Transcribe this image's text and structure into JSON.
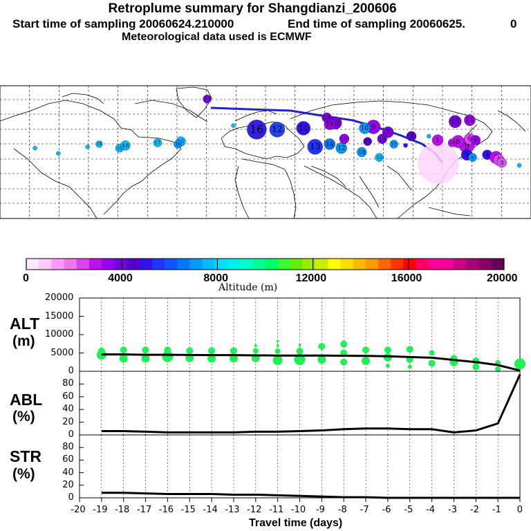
{
  "header": {
    "title": "Retroplume summary for Shangdianzi_200606",
    "line_start": "Start time of sampling 20060624.210000",
    "line_end": "End time of sampling 20060625.",
    "line_end_value": "0",
    "line_met": "Meteorological data used is ECMWF"
  },
  "colorbar": {
    "label": "Altitude (m)",
    "ticks": [
      "0",
      "4000",
      "8000",
      "12000",
      "16000",
      "20000"
    ],
    "tick_values": [
      0,
      4000,
      8000,
      12000,
      16000,
      20000
    ],
    "colors": [
      "#ffe6ff",
      "#ffccff",
      "#ff99ff",
      "#ee77ee",
      "#dd44ee",
      "#bb11ee",
      "#9900ee",
      "#7700dd",
      "#5500cc",
      "#3311ee",
      "#2233ff",
      "#1155ff",
      "#0077ff",
      "#0099ff",
      "#00bbff",
      "#00ddff",
      "#00eeee",
      "#00ffcc",
      "#00ff99",
      "#00ff66",
      "#33ff33",
      "#66ee00",
      "#99ee00",
      "#ccee00",
      "#ffff00",
      "#ffdd00",
      "#ffbb00",
      "#ff9900",
      "#ff6600",
      "#ff3300",
      "#ff0000",
      "#ff0066",
      "#ff0099",
      "#ee0099",
      "#cc0088",
      "#aa0077",
      "#880066",
      "#660055"
    ]
  },
  "map": {
    "markers": [
      {
        "label": "16",
        "lon": 88,
        "lat": 57,
        "r": 14,
        "color": "#3322dd"
      },
      {
        "label": "12",
        "lon": 95,
        "lat": 57,
        "r": 11,
        "color": "#2244ee"
      },
      {
        "label": "11",
        "lon": 104,
        "lat": 58,
        "r": 10,
        "color": "#3311ee"
      },
      {
        "label": "13",
        "lon": 115,
        "lat": 62,
        "r": 9,
        "color": "#7700dd"
      },
      {
        "label": "14",
        "lon": 113,
        "lat": 61,
        "r": 8,
        "color": "#9900ee"
      },
      {
        "label": "9",
        "lon": 128,
        "lat": 59,
        "r": 10,
        "color": "#9900ee"
      },
      {
        "label": "10",
        "lon": 125,
        "lat": 58,
        "r": 8,
        "color": "#0099ff"
      },
      {
        "label": "7",
        "lon": 133,
        "lat": 55,
        "r": 8,
        "color": "#7700dd"
      },
      {
        "label": "3",
        "lon": 141,
        "lat": 52,
        "r": 7,
        "color": "#5500cc"
      },
      {
        "label": "1",
        "lon": 150,
        "lat": 49,
        "r": 8,
        "color": "#bb11ee"
      },
      {
        "label": "9",
        "lon": 160,
        "lat": 45,
        "r": 11,
        "color": "#bb11ee"
      },
      {
        "label": "8",
        "lon": 157,
        "lat": 48,
        "r": 9,
        "color": "#bb11ee"
      },
      {
        "label": "6",
        "lon": 161,
        "lat": 50,
        "r": 8,
        "color": "#dd44ee"
      },
      {
        "label": "9",
        "lon": 163,
        "lat": 49,
        "r": 7,
        "color": "#9900ee"
      },
      {
        "label": "5",
        "lon": 160,
        "lat": 38,
        "r": 8,
        "color": "#3311ee"
      },
      {
        "label": "6",
        "lon": 162,
        "lat": 36,
        "r": 6,
        "color": "#0099ff"
      },
      {
        "label": "4",
        "lon": 167,
        "lat": 38,
        "r": 7,
        "color": "#3311ee"
      },
      {
        "label": "2",
        "lon": 170,
        "lat": 36,
        "r": 9,
        "color": "#bb11ee"
      },
      {
        "label": "5",
        "lon": 171,
        "lat": 34,
        "r": 8,
        "color": "#dd44ee"
      },
      {
        "label": "3",
        "lon": 172,
        "lat": 32,
        "r": 7,
        "color": "#cc55ee"
      },
      {
        "label": "13",
        "lon": 108,
        "lat": 44,
        "r": 11,
        "color": "#2233ff"
      },
      {
        "label": "14",
        "lon": 113,
        "lat": 46,
        "r": 8,
        "color": "#0077ff"
      },
      {
        "label": "12",
        "lon": 117,
        "lat": 43,
        "r": 8,
        "color": "#0099ff"
      },
      {
        "label": "18",
        "lon": 124,
        "lat": 40,
        "r": 7,
        "color": "#0099ff"
      },
      {
        "label": "15",
        "lon": 130,
        "lat": 36,
        "r": 6,
        "color": "#00bbff"
      },
      {
        "label": "11",
        "lon": 135,
        "lat": 46,
        "r": 6,
        "color": "#0099ff"
      },
      {
        "label": "10",
        "lon": 118,
        "lat": 50,
        "r": 7,
        "color": "#9900ee"
      },
      {
        "label": "19",
        "lon": 131,
        "lat": 50,
        "r": 7,
        "color": "#7700dd"
      },
      {
        "label": "17",
        "lon": 126,
        "lat": 48,
        "r": 6,
        "color": "#5500cc"
      },
      {
        "label": "18",
        "lon": 155,
        "lat": 47,
        "r": 6,
        "color": "#bb11ee"
      },
      {
        "label": "15",
        "lon": 156,
        "lat": 63,
        "r": 9,
        "color": "#7700dd"
      },
      {
        "label": "14",
        "lon": 161,
        "lat": 64,
        "r": 8,
        "color": "#9900ee"
      },
      {
        "label": "13",
        "lon": 112,
        "lat": 66,
        "r": 7,
        "color": "#7700dd"
      },
      {
        "label": "15",
        "lon": 62,
        "lat": 48,
        "r": 7,
        "color": "#00bbff"
      },
      {
        "label": "16",
        "lon": 61,
        "lat": 46,
        "r": 6,
        "color": "#0099ff"
      },
      {
        "label": "17",
        "lon": 54,
        "lat": 47,
        "r": 6,
        "color": "#00bbff"
      },
      {
        "label": "18",
        "lon": 43,
        "lat": 45,
        "r": 7,
        "color": "#00bbff"
      },
      {
        "label": "19",
        "lon": 41,
        "lat": 43,
        "r": 6,
        "color": "#00bbff"
      },
      {
        "label": "16",
        "lon": 34,
        "lat": 46,
        "r": 5,
        "color": "#00bbff"
      },
      {
        "label": "15",
        "lon": 71,
        "lat": 80,
        "r": 6,
        "color": "#7700dd"
      },
      {
        "label": "",
        "lon": 80,
        "lat": 60,
        "r": 3,
        "color": "#00bbff"
      },
      {
        "label": "",
        "lon": 30,
        "lat": 44,
        "r": 3,
        "color": "#00bbff"
      },
      {
        "label": "",
        "lon": 20,
        "lat": 39,
        "r": 3,
        "color": "#00bbff"
      },
      {
        "label": "",
        "lon": 12,
        "lat": 43,
        "r": 3,
        "color": "#00bbff"
      },
      {
        "label": "",
        "lon": 178,
        "lat": 30,
        "r": 3,
        "color": "#00bbff"
      },
      {
        "label": "",
        "lon": 147,
        "lat": 52,
        "r": 3,
        "color": "#00bbff"
      },
      {
        "label": "",
        "lon": 139,
        "lat": 45,
        "r": 3,
        "color": "#3311ee"
      }
    ]
  },
  "chart_data": [
    {
      "type": "scatter",
      "name": "ALT",
      "ylabel": "ALT (m)",
      "ylim": [
        0,
        20000
      ],
      "yticks": [
        0,
        5000,
        10000,
        15000,
        20000
      ],
      "median_line": {
        "x": [
          -19,
          -18,
          -17,
          -16,
          -15,
          -14,
          -13,
          -12,
          -11,
          -10,
          -9,
          -8,
          -7,
          -6,
          -5,
          -4,
          -3,
          -2,
          -1,
          0
        ],
        "y": [
          4600,
          4600,
          4500,
          4500,
          4450,
          4400,
          4400,
          4350,
          4300,
          4300,
          4300,
          4250,
          4200,
          4100,
          3900,
          3700,
          3100,
          2500,
          1700,
          200
        ]
      },
      "points": [
        {
          "x": -19,
          "y": 4500,
          "s": 7
        },
        {
          "x": -19,
          "y": 5500,
          "s": 5
        },
        {
          "x": -18,
          "y": 3500,
          "s": 6
        },
        {
          "x": -18,
          "y": 5800,
          "s": 5
        },
        {
          "x": -17,
          "y": 3500,
          "s": 6
        },
        {
          "x": -17,
          "y": 5800,
          "s": 5
        },
        {
          "x": -16,
          "y": 4000,
          "s": 8
        },
        {
          "x": -16,
          "y": 5800,
          "s": 5
        },
        {
          "x": -15,
          "y": 3600,
          "s": 6
        },
        {
          "x": -15,
          "y": 5600,
          "s": 5
        },
        {
          "x": -14,
          "y": 3500,
          "s": 6
        },
        {
          "x": -14,
          "y": 5600,
          "s": 5
        },
        {
          "x": -13,
          "y": 3500,
          "s": 6
        },
        {
          "x": -13,
          "y": 5600,
          "s": 5
        },
        {
          "x": -12,
          "y": 3600,
          "s": 6
        },
        {
          "x": -12,
          "y": 5600,
          "s": 4
        },
        {
          "x": -12,
          "y": 7000,
          "s": 2
        },
        {
          "x": -11,
          "y": 3000,
          "s": 7
        },
        {
          "x": -11,
          "y": 5500,
          "s": 4
        },
        {
          "x": -11,
          "y": 7000,
          "s": 2
        },
        {
          "x": -11,
          "y": 8200,
          "s": 2
        },
        {
          "x": -10,
          "y": 3200,
          "s": 8
        },
        {
          "x": -10,
          "y": 5500,
          "s": 5
        },
        {
          "x": -10,
          "y": 7200,
          "s": 2
        },
        {
          "x": -9,
          "y": 3200,
          "s": 6
        },
        {
          "x": -9,
          "y": 6800,
          "s": 5
        },
        {
          "x": -8,
          "y": 2500,
          "s": 5
        },
        {
          "x": -8,
          "y": 5000,
          "s": 5
        },
        {
          "x": -8,
          "y": 7400,
          "s": 5
        },
        {
          "x": -7,
          "y": 2800,
          "s": 6
        },
        {
          "x": -7,
          "y": 5800,
          "s": 5
        },
        {
          "x": -6,
          "y": 1500,
          "s": 3
        },
        {
          "x": -6,
          "y": 3800,
          "s": 6
        },
        {
          "x": -6,
          "y": 5800,
          "s": 5
        },
        {
          "x": -5,
          "y": 1200,
          "s": 3
        },
        {
          "x": -5,
          "y": 3200,
          "s": 5
        },
        {
          "x": -5,
          "y": 6000,
          "s": 5
        },
        {
          "x": -4,
          "y": 2200,
          "s": 5
        },
        {
          "x": -4,
          "y": 5000,
          "s": 4
        },
        {
          "x": -3,
          "y": 2500,
          "s": 6
        },
        {
          "x": -3,
          "y": 3500,
          "s": 5
        },
        {
          "x": -2,
          "y": 1200,
          "s": 5
        },
        {
          "x": -2,
          "y": 2800,
          "s": 5
        },
        {
          "x": -1,
          "y": 600,
          "s": 4
        },
        {
          "x": -1,
          "y": 2300,
          "s": 4
        },
        {
          "x": 0,
          "y": 2000,
          "s": 8
        }
      ]
    },
    {
      "type": "line",
      "name": "ABL",
      "ylabel": "ABL (%)",
      "ylim": [
        0,
        100
      ],
      "yticks": [
        0,
        20,
        40,
        60,
        80
      ],
      "x": [
        -19,
        -18,
        -17,
        -16,
        -15,
        -14,
        -13,
        -12,
        -11,
        -10,
        -9,
        -8,
        -7,
        -6,
        -5,
        -4,
        -3,
        -2,
        -1,
        0
      ],
      "y": [
        6,
        6,
        5,
        4,
        4,
        4,
        4,
        5,
        5,
        6,
        7,
        9,
        10,
        10,
        9,
        9,
        4,
        7,
        18,
        95
      ]
    },
    {
      "type": "line",
      "name": "STR",
      "ylabel": "STR (%)",
      "ylim": [
        0,
        100
      ],
      "yticks": [
        0,
        20,
        40,
        60,
        80
      ],
      "x": [
        -19,
        -18,
        -17,
        -16,
        -15,
        -14,
        -13,
        -12,
        -11,
        -10,
        -9,
        -8,
        -7,
        -6,
        -5,
        -4,
        -3,
        -2,
        -1,
        0
      ],
      "y": [
        8,
        8,
        7,
        6,
        6,
        6,
        5,
        5,
        4,
        3,
        2,
        1,
        1,
        0,
        0,
        0,
        0,
        0,
        0,
        0
      ]
    }
  ],
  "xaxis": {
    "label": "Travel time (days)",
    "ticks": [
      "-20",
      "-19",
      "-18",
      "-17",
      "-16",
      "-15",
      "-14",
      "-13",
      "-12",
      "-11",
      "-10",
      "-9",
      "-8",
      "-7",
      "-6",
      "-5",
      "-4",
      "-3",
      "-2",
      "-1",
      "0"
    ],
    "values": [
      -20,
      -19,
      -18,
      -17,
      -16,
      -15,
      -14,
      -13,
      -12,
      -11,
      -10,
      -9,
      -8,
      -7,
      -6,
      -5,
      -4,
      -3,
      -2,
      -1,
      0
    ]
  },
  "panels": {
    "alt_label": "ALT",
    "alt_unit": "(m)",
    "abl_label": "ABL",
    "abl_unit": "(%)",
    "str_label": "STR",
    "str_unit": "(%)",
    "alt_color": "#22ee55",
    "line_color": "#000000"
  }
}
